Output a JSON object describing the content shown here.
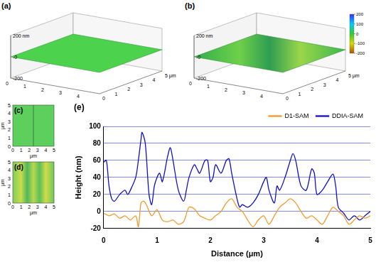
{
  "chart_data": {
    "type": "line",
    "title": "(e)",
    "x_label": "Distance (μm)",
    "y_label": "Height (nm)",
    "xlim": [
      0,
      5
    ],
    "xticks": [
      0,
      1,
      2,
      3,
      4,
      5
    ],
    "ylim": [
      -20,
      100
    ],
    "yticks": [
      -20,
      0,
      20,
      40,
      60,
      80,
      100
    ],
    "grid": true,
    "legend": "upper right",
    "series": [
      {
        "name": "D1-SAM",
        "color": "#f39a2c",
        "x": [
          0,
          0.1,
          0.2,
          0.3,
          0.4,
          0.5,
          0.6,
          0.65,
          0.7,
          0.75,
          0.8,
          0.9,
          1.0,
          1.1,
          1.2,
          1.3,
          1.4,
          1.5,
          1.6,
          1.7,
          1.8,
          1.9,
          2.0,
          2.1,
          2.2,
          2.3,
          2.4,
          2.5,
          2.6,
          2.7,
          2.8,
          2.9,
          3.0,
          3.1,
          3.2,
          3.3,
          3.4,
          3.5,
          3.6,
          3.7,
          3.8,
          3.9,
          4.0,
          4.1,
          4.2,
          4.3,
          4.4,
          4.5,
          4.6,
          4.7,
          4.8,
          4.9,
          5.0
        ],
        "values": [
          -2,
          -5,
          -3,
          -8,
          -5,
          -10,
          -5,
          -18,
          10,
          12,
          8,
          -5,
          2,
          -10,
          -12,
          -10,
          -15,
          -12,
          5,
          3,
          -5,
          -8,
          -10,
          -5,
          0,
          10,
          15,
          5,
          0,
          -10,
          -18,
          -10,
          -5,
          -15,
          -5,
          5,
          10,
          15,
          10,
          0,
          -8,
          -5,
          -10,
          -15,
          -5,
          5,
          0,
          -5,
          -15,
          -10,
          -5,
          -8,
          -5
        ]
      },
      {
        "name": "DDIA-SAM",
        "color": "#1010c8",
        "x": [
          0,
          0.05,
          0.1,
          0.15,
          0.2,
          0.3,
          0.4,
          0.45,
          0.5,
          0.6,
          0.65,
          0.7,
          0.72,
          0.78,
          0.85,
          0.9,
          0.95,
          1.0,
          1.05,
          1.1,
          1.2,
          1.25,
          1.3,
          1.4,
          1.5,
          1.55,
          1.6,
          1.7,
          1.75,
          1.8,
          1.9,
          1.95,
          2.0,
          2.05,
          2.1,
          2.2,
          2.3,
          2.35,
          2.4,
          2.5,
          2.55,
          2.6,
          2.7,
          2.8,
          2.9,
          3.0,
          3.05,
          3.1,
          3.2,
          3.25,
          3.3,
          3.4,
          3.5,
          3.55,
          3.6,
          3.7,
          3.8,
          3.9,
          3.95,
          4.0,
          4.1,
          4.2,
          4.3,
          4.35,
          4.4,
          4.5,
          4.6,
          4.7,
          4.8,
          4.9,
          5.0
        ],
        "values": [
          58,
          60,
          30,
          15,
          12,
          20,
          25,
          20,
          25,
          40,
          60,
          85,
          93,
          80,
          20,
          8,
          30,
          40,
          45,
          35,
          65,
          75,
          60,
          25,
          12,
          25,
          40,
          55,
          50,
          45,
          60,
          60,
          35,
          40,
          55,
          45,
          60,
          62,
          45,
          15,
          5,
          8,
          5,
          10,
          20,
          35,
          40,
          25,
          10,
          30,
          25,
          40,
          60,
          68,
          60,
          30,
          25,
          50,
          45,
          20,
          25,
          35,
          44,
          30,
          5,
          -2,
          -10,
          -5,
          -10,
          -5,
          0
        ]
      }
    ]
  },
  "afm_images": [
    {
      "label": "(a)",
      "kind": "3d",
      "color": "#4cd24c",
      "z_range": [
        -200,
        200
      ],
      "z_ticks": [
        {
          "value": 200,
          "label": "200 nm"
        },
        {
          "value": 0,
          "label": "-0"
        },
        {
          "value": -200,
          "label": "-200"
        }
      ],
      "xy_range": [
        0,
        5
      ],
      "x_ticks": [
        0,
        1,
        2,
        3,
        4,
        {
          "value": 5,
          "label": "5 μm"
        }
      ],
      "y_ticks": [
        0,
        1,
        2,
        3,
        4
      ]
    },
    {
      "label": "(b)",
      "kind": "3d",
      "color": "#3cb84c",
      "z_range": [
        -200,
        200
      ],
      "z_ticks": [
        {
          "value": 200,
          "label": "200 nm"
        },
        {
          "value": 0,
          "label": "-0"
        },
        {
          "value": -200,
          "label": "-200"
        }
      ],
      "xy_range": [
        0,
        5
      ],
      "x_ticks": [
        0,
        1,
        2,
        3,
        4,
        {
          "value": 5,
          "label": "5 μm"
        }
      ],
      "y_ticks": [
        0,
        1,
        2,
        3,
        4
      ],
      "colorbar": {
        "range": [
          -200,
          200
        ],
        "ticks": [
          200,
          100,
          0,
          -100,
          -200
        ],
        "colors": [
          "#3030ff",
          "#00ccff",
          "#33cc33",
          "#d8d800",
          "#aa5500"
        ]
      }
    },
    {
      "label": "(c)",
      "kind": "2d",
      "color": "#5ccf5c",
      "unit": "μm",
      "range": [
        0,
        5
      ],
      "ticks": [
        0,
        1,
        2,
        3,
        4,
        5
      ]
    },
    {
      "label": "(d)",
      "kind": "2d",
      "color": "#8fd05a",
      "unit": "μm",
      "range": [
        0,
        5
      ],
      "ticks": [
        0,
        1,
        2,
        3,
        4,
        5
      ]
    }
  ]
}
